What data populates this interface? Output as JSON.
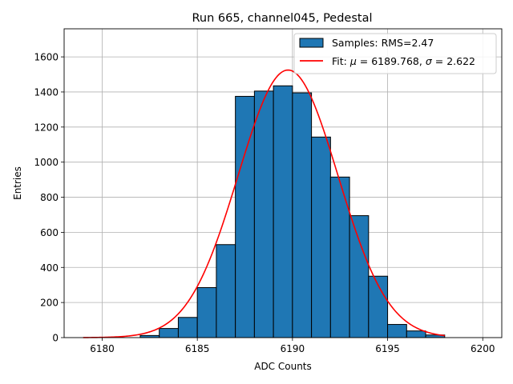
{
  "chart_data": {
    "type": "bar",
    "title": "Run 665, channel045, Pedestal",
    "xlabel": "ADC Counts",
    "ylabel": "Entries",
    "xlim": [
      6178.0,
      6201.0
    ],
    "ylim": [
      0,
      1760
    ],
    "xticks": [
      6180,
      6185,
      6190,
      6195,
      6200
    ],
    "yticks": [
      0,
      200,
      400,
      600,
      800,
      1000,
      1200,
      1400,
      1600
    ],
    "grid": true,
    "legend_position": "top-right",
    "histogram": {
      "name": "Samples: RMS=2.47",
      "color": "#1f77b4",
      "edgecolor": "#000000",
      "bin_edges": [
        6179,
        6180,
        6181,
        6182,
        6183,
        6184,
        6185,
        6186,
        6187,
        6188,
        6189,
        6190,
        6191,
        6192,
        6193,
        6194,
        6195,
        6196,
        6197,
        6198
      ],
      "counts": [
        0,
        0,
        0,
        12,
        52,
        115,
        285,
        530,
        1375,
        1405,
        1435,
        1395,
        1143,
        915,
        695,
        350,
        75,
        38,
        15
      ]
    },
    "fit": {
      "name_prefix": "Fit: ",
      "mu_symbol": "μ",
      "sigma_symbol": "σ",
      "mu": 6189.768,
      "sigma": 2.622,
      "amplitude": 1525,
      "x_range": [
        6179,
        6198
      ],
      "color": "#ff0000"
    }
  }
}
